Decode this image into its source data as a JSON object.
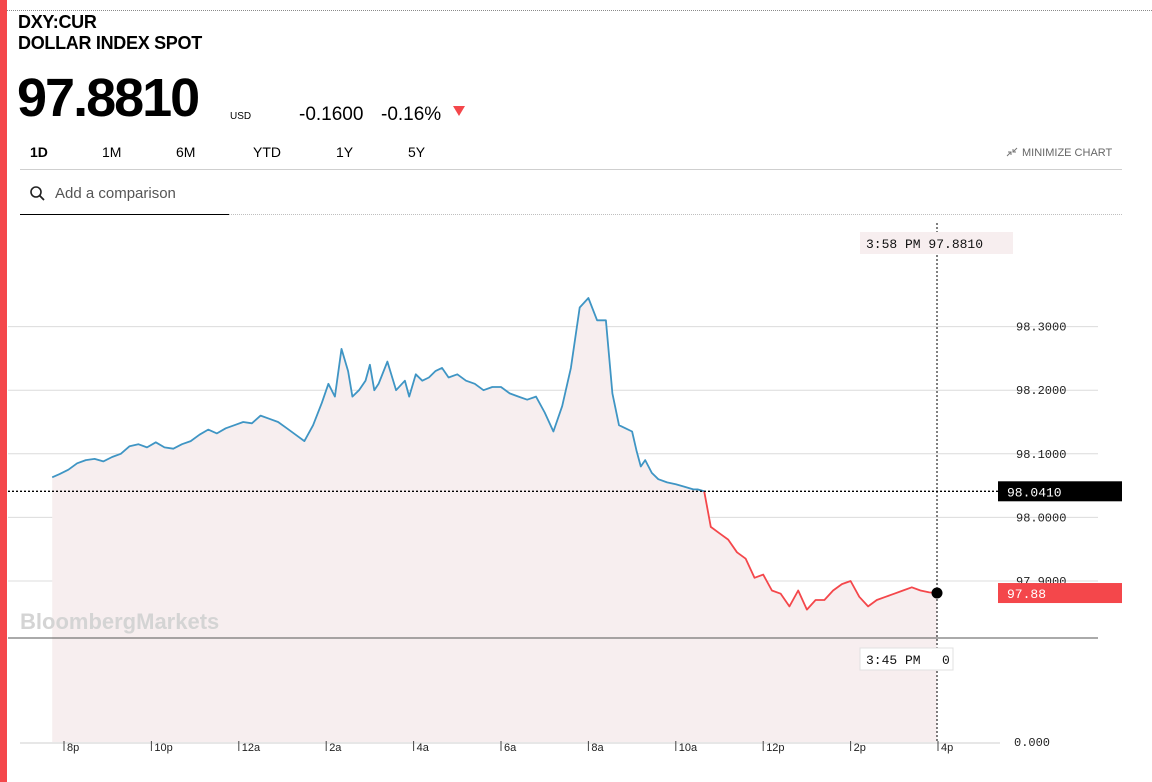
{
  "header": {
    "ticker": "DXY:CUR",
    "name": "DOLLAR INDEX SPOT",
    "price": "97.8810",
    "currency": "USD",
    "change": "-0.1600",
    "change_pct": "-0.16%"
  },
  "ranges": [
    {
      "label": "1D",
      "active": true
    },
    {
      "label": "1M",
      "active": false
    },
    {
      "label": "6M",
      "active": false
    },
    {
      "label": "YTD",
      "active": false
    },
    {
      "label": "1Y",
      "active": false
    },
    {
      "label": "5Y",
      "active": false
    }
  ],
  "minimize_label": "MINIMIZE CHART",
  "search": {
    "placeholder": "Add a comparison"
  },
  "colors": {
    "accent": "#f4474b",
    "up_line": "#3f95c4",
    "down_line": "#f4474b",
    "fill": "#f7eeef"
  },
  "chart_data": {
    "type": "line",
    "x_ticks": [
      "8p",
      "10p",
      "12a",
      "2a",
      "4a",
      "6a",
      "8a",
      "10a",
      "12p",
      "2p",
      "4p"
    ],
    "x_tick_hours": [
      20,
      22,
      24,
      26,
      28,
      30,
      32,
      34,
      36,
      38,
      40
    ],
    "y_ticks": [
      "98.3000",
      "98.2000",
      "98.1000",
      "98.0000",
      "97.9000"
    ],
    "y_tick_values": [
      98.3,
      98.2,
      98.1,
      98.0,
      97.9
    ],
    "ylim": [
      97.815,
      98.345
    ],
    "grid": true,
    "previous_close": 98.041,
    "previous_close_label": "98.0410",
    "last_value": 97.881,
    "last_label": "97.88",
    "crosshair_top_label": "3:58 PM 97.8810",
    "crosshair_bottom_label": "3:45 PM",
    "volume_value": "0",
    "volume_axis_label": "0.000",
    "watermark": "BloombergMarkets",
    "series": [
      {
        "x": [
          19.73,
          19.9,
          20.1,
          20.3,
          20.5,
          20.7,
          20.9,
          21.1,
          21.3,
          21.5,
          21.7,
          21.9,
          22.1,
          22.3,
          22.5,
          22.7,
          22.9,
          23.1,
          23.3,
          23.5,
          23.7,
          23.9,
          24.1,
          24.3,
          24.5,
          24.7,
          24.9,
          25.1,
          25.3,
          25.5,
          25.7,
          25.9,
          26.05,
          26.2,
          26.35,
          26.5,
          26.6,
          26.75,
          26.9,
          27.0,
          27.1,
          27.2,
          27.4,
          27.6,
          27.8,
          27.9,
          28.05,
          28.2,
          28.35,
          28.5,
          28.65,
          28.8,
          29.0,
          29.2,
          29.4,
          29.6,
          29.8,
          30.0,
          30.2,
          30.4,
          30.6,
          30.8,
          31.0,
          31.2,
          31.4,
          31.6,
          31.8,
          32.0,
          32.2,
          32.4,
          32.55,
          32.7,
          32.85,
          33.0,
          33.1,
          33.2,
          33.3,
          33.45,
          33.6,
          33.8,
          34.0,
          34.2,
          34.4,
          34.5,
          34.65
        ],
        "y": [
          98.063,
          98.068,
          98.075,
          98.085,
          98.09,
          98.092,
          98.088,
          98.095,
          98.1,
          98.112,
          98.115,
          98.11,
          98.118,
          98.11,
          98.108,
          98.115,
          98.12,
          98.13,
          98.138,
          98.132,
          98.14,
          98.145,
          98.15,
          98.148,
          98.16,
          98.155,
          98.15,
          98.14,
          98.13,
          98.12,
          98.145,
          98.18,
          98.21,
          98.19,
          98.265,
          98.23,
          98.19,
          98.2,
          98.215,
          98.24,
          98.2,
          98.21,
          98.245,
          98.2,
          98.215,
          98.19,
          98.225,
          98.215,
          98.22,
          98.23,
          98.235,
          98.22,
          98.225,
          98.215,
          98.21,
          98.2,
          98.205,
          98.205,
          98.195,
          98.19,
          98.185,
          98.19,
          98.165,
          98.135,
          98.175,
          98.235,
          98.33,
          98.345,
          98.31,
          98.31,
          98.195,
          98.145,
          98.14,
          98.135,
          98.105,
          98.08,
          98.09,
          98.07,
          98.06,
          98.055,
          98.052,
          98.048,
          98.044,
          98.044,
          98.041
        ]
      },
      {
        "x": [
          34.65,
          34.8,
          35.0,
          35.2,
          35.4,
          35.6,
          35.8,
          36.0,
          36.2,
          36.4,
          36.6,
          36.8,
          37.0,
          37.2,
          37.4,
          37.6,
          37.8,
          38.0,
          38.2,
          38.4,
          38.6,
          38.8,
          39.0,
          39.2,
          39.4,
          39.6,
          39.8,
          39.97
        ],
        "y": [
          98.041,
          97.985,
          97.975,
          97.965,
          97.945,
          97.935,
          97.905,
          97.91,
          97.885,
          97.88,
          97.86,
          97.885,
          97.855,
          97.87,
          97.87,
          97.885,
          97.895,
          97.9,
          97.875,
          97.86,
          97.87,
          97.875,
          97.88,
          97.885,
          97.89,
          97.885,
          97.882,
          97.881
        ]
      }
    ]
  }
}
